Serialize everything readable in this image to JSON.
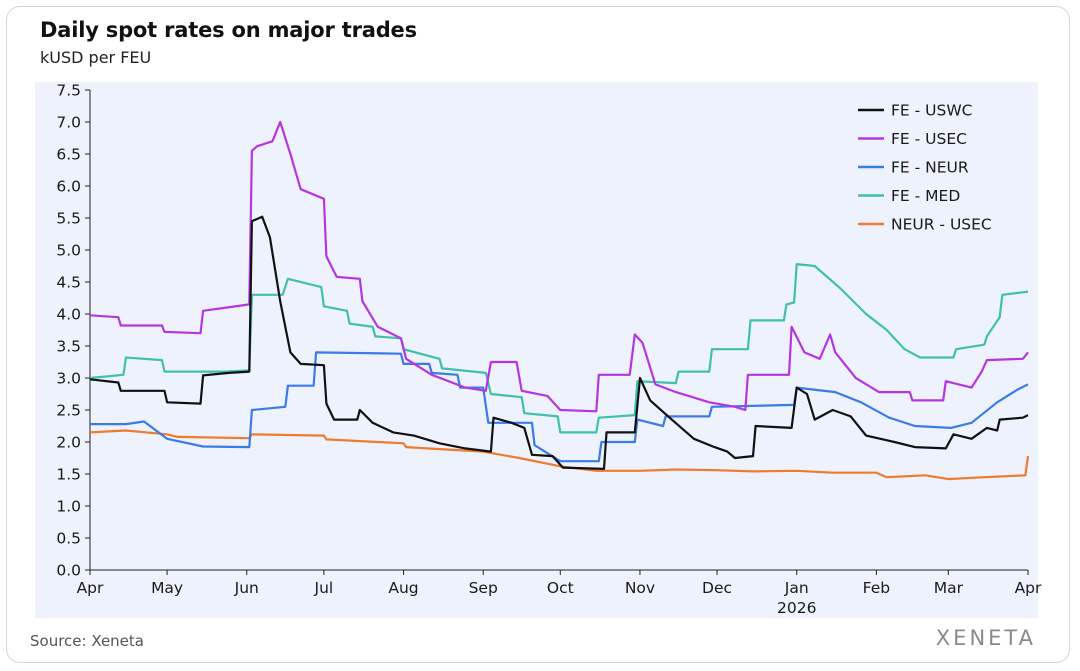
{
  "chart_data": {
    "type": "line",
    "title": "Daily spot rates on major trades",
    "subtitle": "kUSD per FEU",
    "xlabel": "",
    "ylabel": "",
    "ylim": [
      0,
      7.5
    ],
    "yticks": [
      "0.0",
      "0.5",
      "1.0",
      "1.5",
      "2.0",
      "2.5",
      "3.0",
      "3.5",
      "4.0",
      "4.5",
      "5.0",
      "5.5",
      "6.0",
      "6.5",
      "7.0",
      "7.5"
    ],
    "xlim": [
      "2025-04-01",
      "2026-04-01"
    ],
    "xticks": [
      {
        "label": "Apr",
        "date": "2025-04-01"
      },
      {
        "label": "May",
        "date": "2025-05-01"
      },
      {
        "label": "Jun",
        "date": "2025-06-01"
      },
      {
        "label": "Jul",
        "date": "2025-07-01"
      },
      {
        "label": "Aug",
        "date": "2025-08-01"
      },
      {
        "label": "Sep",
        "date": "2025-09-01"
      },
      {
        "label": "Oct",
        "date": "2025-10-01"
      },
      {
        "label": "Nov",
        "date": "2025-11-01"
      },
      {
        "label": "Dec",
        "date": "2025-12-01"
      },
      {
        "label": "Jan",
        "date": "2026-01-01",
        "sublabel": "2026"
      },
      {
        "label": "Feb",
        "date": "2026-02-01"
      },
      {
        "label": "Mar",
        "date": "2026-03-01"
      },
      {
        "label": "Apr",
        "date": "2026-04-01"
      }
    ],
    "grid": false,
    "legend_position": "top-right",
    "series": [
      {
        "name": "FE - USWC",
        "color": "#111111",
        "points": [
          [
            "2025-04-01",
            2.98
          ],
          [
            "2025-04-12",
            2.93
          ],
          [
            "2025-04-13",
            2.8
          ],
          [
            "2025-04-30",
            2.8
          ],
          [
            "2025-05-01",
            2.62
          ],
          [
            "2025-05-14",
            2.6
          ],
          [
            "2025-05-15",
            3.04
          ],
          [
            "2025-05-25",
            3.08
          ],
          [
            "2025-06-02",
            3.1
          ],
          [
            "2025-06-03",
            5.45
          ],
          [
            "2025-06-07",
            5.52
          ],
          [
            "2025-06-10",
            5.2
          ],
          [
            "2025-06-14",
            4.2
          ],
          [
            "2025-06-18",
            3.4
          ],
          [
            "2025-06-22",
            3.22
          ],
          [
            "2025-07-01",
            3.2
          ],
          [
            "2025-07-02",
            2.6
          ],
          [
            "2025-07-05",
            2.35
          ],
          [
            "2025-07-14",
            2.35
          ],
          [
            "2025-07-15",
            2.5
          ],
          [
            "2025-07-20",
            2.3
          ],
          [
            "2025-07-28",
            2.15
          ],
          [
            "2025-08-05",
            2.1
          ],
          [
            "2025-08-15",
            1.98
          ],
          [
            "2025-08-25",
            1.9
          ],
          [
            "2025-09-04",
            1.85
          ],
          [
            "2025-09-05",
            2.38
          ],
          [
            "2025-09-12",
            2.3
          ],
          [
            "2025-09-17",
            2.22
          ],
          [
            "2025-09-20",
            1.8
          ],
          [
            "2025-09-28",
            1.78
          ],
          [
            "2025-10-02",
            1.6
          ],
          [
            "2025-10-18",
            1.58
          ],
          [
            "2025-10-19",
            2.15
          ],
          [
            "2025-10-30",
            2.15
          ],
          [
            "2025-11-01",
            3.0
          ],
          [
            "2025-11-05",
            2.65
          ],
          [
            "2025-11-12",
            2.4
          ],
          [
            "2025-11-22",
            2.05
          ],
          [
            "2025-11-30",
            1.92
          ],
          [
            "2025-12-05",
            1.85
          ],
          [
            "2025-12-08",
            1.75
          ],
          [
            "2025-12-15",
            1.78
          ],
          [
            "2025-12-16",
            2.25
          ],
          [
            "2025-12-30",
            2.22
          ],
          [
            "2026-01-01",
            2.85
          ],
          [
            "2026-01-05",
            2.75
          ],
          [
            "2026-01-08",
            2.35
          ],
          [
            "2026-01-15",
            2.5
          ],
          [
            "2026-01-22",
            2.4
          ],
          [
            "2026-01-28",
            2.1
          ],
          [
            "2026-02-08",
            2.0
          ],
          [
            "2026-02-16",
            1.92
          ],
          [
            "2026-02-28",
            1.9
          ],
          [
            "2026-03-03",
            2.12
          ],
          [
            "2026-03-10",
            2.05
          ],
          [
            "2026-03-16",
            2.22
          ],
          [
            "2026-03-20",
            2.18
          ],
          [
            "2026-03-21",
            2.35
          ],
          [
            "2026-03-30",
            2.38
          ],
          [
            "2026-04-01",
            2.42
          ]
        ]
      },
      {
        "name": "FE - USEC",
        "color": "#b536e0",
        "points": [
          [
            "2025-04-01",
            3.98
          ],
          [
            "2025-04-12",
            3.95
          ],
          [
            "2025-04-13",
            3.82
          ],
          [
            "2025-04-29",
            3.82
          ],
          [
            "2025-04-30",
            3.72
          ],
          [
            "2025-05-14",
            3.7
          ],
          [
            "2025-05-15",
            4.05
          ],
          [
            "2025-05-24",
            4.1
          ],
          [
            "2025-06-02",
            4.15
          ],
          [
            "2025-06-03",
            6.55
          ],
          [
            "2025-06-05",
            6.62
          ],
          [
            "2025-06-11",
            6.7
          ],
          [
            "2025-06-14",
            7.0
          ],
          [
            "2025-06-18",
            6.5
          ],
          [
            "2025-06-22",
            5.95
          ],
          [
            "2025-07-01",
            5.8
          ],
          [
            "2025-07-02",
            4.9
          ],
          [
            "2025-07-06",
            4.58
          ],
          [
            "2025-07-15",
            4.55
          ],
          [
            "2025-07-16",
            4.2
          ],
          [
            "2025-07-22",
            3.8
          ],
          [
            "2025-07-31",
            3.62
          ],
          [
            "2025-08-02",
            3.3
          ],
          [
            "2025-08-12",
            3.05
          ],
          [
            "2025-08-25",
            2.85
          ],
          [
            "2025-09-02",
            2.8
          ],
          [
            "2025-09-04",
            3.25
          ],
          [
            "2025-09-14",
            3.25
          ],
          [
            "2025-09-16",
            2.8
          ],
          [
            "2025-09-26",
            2.72
          ],
          [
            "2025-10-01",
            2.5
          ],
          [
            "2025-10-15",
            2.48
          ],
          [
            "2025-10-16",
            3.05
          ],
          [
            "2025-10-28",
            3.05
          ],
          [
            "2025-10-30",
            3.68
          ],
          [
            "2025-11-02",
            3.55
          ],
          [
            "2025-11-07",
            2.9
          ],
          [
            "2025-11-15",
            2.78
          ],
          [
            "2025-11-28",
            2.62
          ],
          [
            "2025-12-08",
            2.55
          ],
          [
            "2025-12-12",
            2.5
          ],
          [
            "2025-12-13",
            3.05
          ],
          [
            "2025-12-29",
            3.05
          ],
          [
            "2025-12-30",
            3.8
          ],
          [
            "2026-01-04",
            3.4
          ],
          [
            "2026-01-10",
            3.3
          ],
          [
            "2026-01-14",
            3.68
          ],
          [
            "2026-01-16",
            3.4
          ],
          [
            "2026-01-24",
            3.0
          ],
          [
            "2026-02-02",
            2.78
          ],
          [
            "2026-02-14",
            2.78
          ],
          [
            "2026-02-15",
            2.65
          ],
          [
            "2026-02-27",
            2.65
          ],
          [
            "2026-02-28",
            2.95
          ],
          [
            "2026-03-10",
            2.85
          ],
          [
            "2026-03-14",
            3.1
          ],
          [
            "2026-03-16",
            3.28
          ],
          [
            "2026-03-30",
            3.3
          ],
          [
            "2026-04-01",
            3.4
          ]
        ]
      },
      {
        "name": "FE - NEUR",
        "color": "#3b7be8",
        "points": [
          [
            "2025-04-01",
            2.28
          ],
          [
            "2025-04-15",
            2.28
          ],
          [
            "2025-04-22",
            2.32
          ],
          [
            "2025-05-01",
            2.05
          ],
          [
            "2025-05-15",
            1.93
          ],
          [
            "2025-06-02",
            1.92
          ],
          [
            "2025-06-03",
            2.5
          ],
          [
            "2025-06-16",
            2.55
          ],
          [
            "2025-06-17",
            2.88
          ],
          [
            "2025-06-27",
            2.88
          ],
          [
            "2025-06-28",
            3.4
          ],
          [
            "2025-07-31",
            3.38
          ],
          [
            "2025-08-01",
            3.22
          ],
          [
            "2025-08-11",
            3.22
          ],
          [
            "2025-08-12",
            3.08
          ],
          [
            "2025-08-22",
            3.05
          ],
          [
            "2025-08-23",
            2.85
          ],
          [
            "2025-09-01",
            2.85
          ],
          [
            "2025-09-03",
            2.3
          ],
          [
            "2025-09-20",
            2.3
          ],
          [
            "2025-09-21",
            1.95
          ],
          [
            "2025-10-01",
            1.7
          ],
          [
            "2025-10-16",
            1.7
          ],
          [
            "2025-10-17",
            2.0
          ],
          [
            "2025-10-30",
            2.0
          ],
          [
            "2025-10-31",
            2.35
          ],
          [
            "2025-11-10",
            2.25
          ],
          [
            "2025-11-11",
            2.4
          ],
          [
            "2025-11-28",
            2.4
          ],
          [
            "2025-11-29",
            2.55
          ],
          [
            "2025-12-31",
            2.58
          ],
          [
            "2026-01-01",
            2.85
          ],
          [
            "2026-01-16",
            2.78
          ],
          [
            "2026-01-26",
            2.62
          ],
          [
            "2026-02-06",
            2.38
          ],
          [
            "2026-02-16",
            2.25
          ],
          [
            "2026-03-02",
            2.22
          ],
          [
            "2026-03-10",
            2.3
          ],
          [
            "2026-03-20",
            2.62
          ],
          [
            "2026-03-28",
            2.82
          ],
          [
            "2026-04-01",
            2.9
          ]
        ]
      },
      {
        "name": "FE - MED",
        "color": "#3fc0aa",
        "points": [
          [
            "2025-04-01",
            3.0
          ],
          [
            "2025-04-14",
            3.05
          ],
          [
            "2025-04-15",
            3.32
          ],
          [
            "2025-04-29",
            3.28
          ],
          [
            "2025-04-30",
            3.1
          ],
          [
            "2025-05-24",
            3.1
          ],
          [
            "2025-06-02",
            3.12
          ],
          [
            "2025-06-03",
            4.3
          ],
          [
            "2025-06-15",
            4.3
          ],
          [
            "2025-06-17",
            4.55
          ],
          [
            "2025-06-30",
            4.42
          ],
          [
            "2025-07-01",
            4.12
          ],
          [
            "2025-07-10",
            4.05
          ],
          [
            "2025-07-11",
            3.85
          ],
          [
            "2025-07-20",
            3.8
          ],
          [
            "2025-07-21",
            3.65
          ],
          [
            "2025-07-31",
            3.62
          ],
          [
            "2025-08-01",
            3.45
          ],
          [
            "2025-08-15",
            3.3
          ],
          [
            "2025-08-16",
            3.15
          ],
          [
            "2025-09-02",
            3.08
          ],
          [
            "2025-09-04",
            2.75
          ],
          [
            "2025-09-16",
            2.7
          ],
          [
            "2025-09-17",
            2.45
          ],
          [
            "2025-09-30",
            2.4
          ],
          [
            "2025-10-01",
            2.15
          ],
          [
            "2025-10-15",
            2.15
          ],
          [
            "2025-10-16",
            2.38
          ],
          [
            "2025-10-30",
            2.42
          ],
          [
            "2025-10-31",
            2.95
          ],
          [
            "2025-11-15",
            2.92
          ],
          [
            "2025-11-16",
            3.1
          ],
          [
            "2025-11-28",
            3.1
          ],
          [
            "2025-11-29",
            3.45
          ],
          [
            "2025-12-13",
            3.45
          ],
          [
            "2025-12-14",
            3.9
          ],
          [
            "2025-12-27",
            3.9
          ],
          [
            "2025-12-28",
            4.15
          ],
          [
            "2025-12-31",
            4.18
          ],
          [
            "2026-01-01",
            4.78
          ],
          [
            "2026-01-08",
            4.75
          ],
          [
            "2026-01-18",
            4.4
          ],
          [
            "2026-01-28",
            4.0
          ],
          [
            "2026-02-05",
            3.75
          ],
          [
            "2026-02-12",
            3.45
          ],
          [
            "2026-02-18",
            3.32
          ],
          [
            "2026-03-03",
            3.32
          ],
          [
            "2026-03-04",
            3.45
          ],
          [
            "2026-03-15",
            3.52
          ],
          [
            "2026-03-16",
            3.65
          ],
          [
            "2026-03-21",
            3.95
          ],
          [
            "2026-03-22",
            4.3
          ],
          [
            "2026-04-01",
            4.35
          ]
        ]
      },
      {
        "name": "NEUR - USEC",
        "color": "#f07a2d",
        "points": [
          [
            "2025-04-01",
            2.15
          ],
          [
            "2025-04-15",
            2.18
          ],
          [
            "2025-05-01",
            2.12
          ],
          [
            "2025-05-05",
            2.08
          ],
          [
            "2025-06-02",
            2.06
          ],
          [
            "2025-06-03",
            2.12
          ],
          [
            "2025-07-01",
            2.1
          ],
          [
            "2025-07-02",
            2.04
          ],
          [
            "2025-08-01",
            1.98
          ],
          [
            "2025-08-02",
            1.92
          ],
          [
            "2025-09-01",
            1.85
          ],
          [
            "2025-09-15",
            1.75
          ],
          [
            "2025-10-01",
            1.62
          ],
          [
            "2025-10-15",
            1.55
          ],
          [
            "2025-11-01",
            1.55
          ],
          [
            "2025-11-15",
            1.57
          ],
          [
            "2025-12-01",
            1.56
          ],
          [
            "2025-12-15",
            1.54
          ],
          [
            "2026-01-01",
            1.55
          ],
          [
            "2026-01-15",
            1.52
          ],
          [
            "2026-02-01",
            1.52
          ],
          [
            "2026-02-05",
            1.45
          ],
          [
            "2026-02-20",
            1.48
          ],
          [
            "2026-03-01",
            1.42
          ],
          [
            "2026-03-10",
            1.44
          ],
          [
            "2026-03-20",
            1.46
          ],
          [
            "2026-03-31",
            1.48
          ],
          [
            "2026-04-01",
            1.78
          ]
        ]
      }
    ]
  },
  "footer": {
    "source": "Source: Xeneta",
    "brand": "XENETA"
  }
}
